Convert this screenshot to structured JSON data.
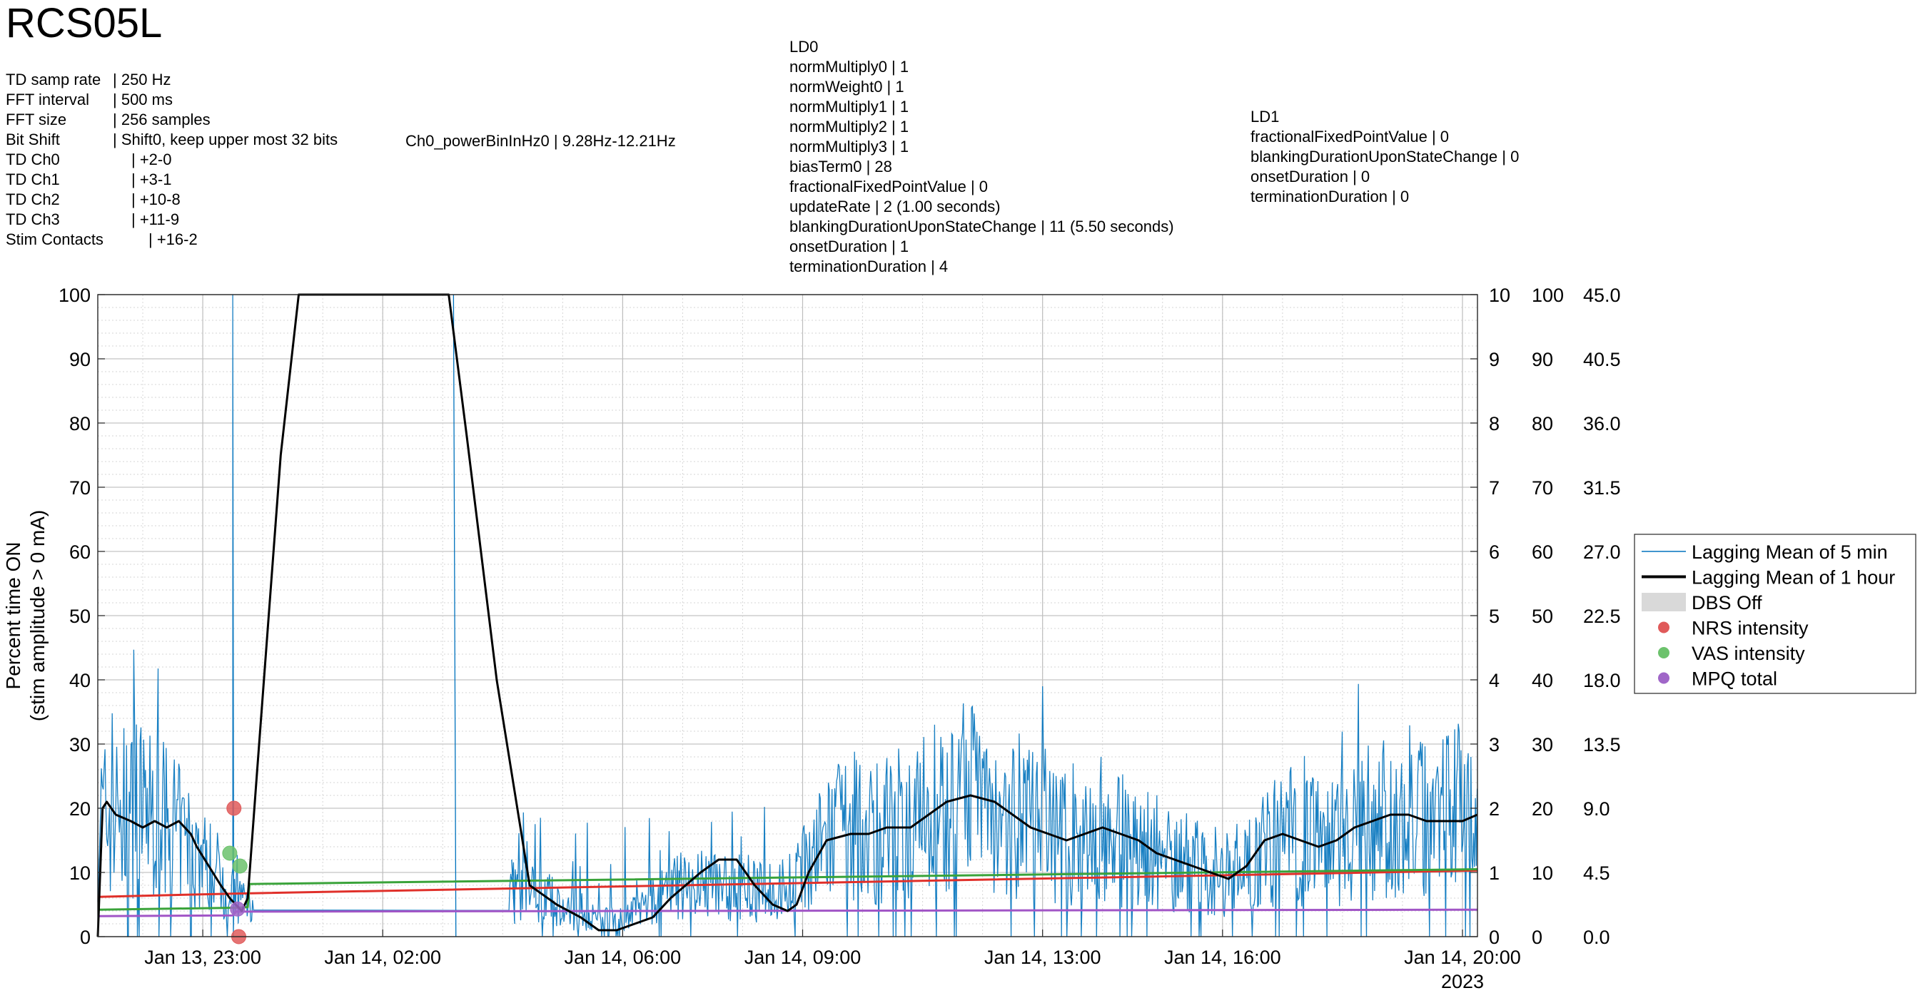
{
  "title": "RCS05L",
  "td_info": [
    {
      "key": "TD samp rate",
      "value": "| 250 Hz",
      "indent": 150
    },
    {
      "key": "FFT interval",
      "value": "| 500 ms",
      "indent": 150
    },
    {
      "key": "FFT size",
      "value": "| 256 samples",
      "indent": 150
    },
    {
      "key": "Bit Shift",
      "value": "| Shift0, keep upper most 32 bits",
      "indent": 150
    },
    {
      "key": "TD Ch0",
      "value": "| +2-0",
      "indent": 176
    },
    {
      "key": "TD Ch1",
      "value": "| +3-1",
      "indent": 176
    },
    {
      "key": "TD Ch2",
      "value": "| +10-8",
      "indent": 176
    },
    {
      "key": "TD Ch3",
      "value": "| +11-9",
      "indent": 176
    },
    {
      "key": "Stim Contacts",
      "value": "| +16-2",
      "indent": 200
    }
  ],
  "power_bin": "Ch0_powerBinInHz0 | 9.28Hz-12.21Hz",
  "ld0": [
    "LD0",
    "normMultiply0 | 1",
    "normWeight0 | 1",
    "normMultiply1 | 1",
    "normMultiply2 | 1",
    "normMultiply3 | 1",
    "biasTerm0 | 28",
    "fractionalFixedPointValue | 0",
    "updateRate | 2 (1.00 seconds)",
    "blankingDurationUponStateChange | 11 (5.50 seconds)",
    "onsetDuration | 1",
    "terminationDuration | 4"
  ],
  "ld1": [
    "LD1",
    "fractionalFixedPointValue | 0",
    "blankingDurationUponStateChange | 0",
    "onsetDuration | 0",
    "terminationDuration | 0"
  ],
  "chart_data": {
    "type": "line",
    "ylabel": [
      "Percent time ON",
      "(stim amplitude > 0 mA)"
    ],
    "ylim": [
      0,
      100
    ],
    "yticks": [
      0,
      10,
      20,
      30,
      40,
      50,
      60,
      70,
      80,
      90,
      100
    ],
    "xlim": [
      21.25,
      44.25
    ],
    "x_unit": "hours since Jan 13 00:00",
    "xticks": [
      {
        "x": 23,
        "label": "Jan 13, 23:00"
      },
      {
        "x": 26,
        "label": "Jan 14, 02:00"
      },
      {
        "x": 30,
        "label": "Jan 14, 06:00"
      },
      {
        "x": 33,
        "label": "Jan 14, 09:00"
      },
      {
        "x": 37,
        "label": "Jan 14, 13:00"
      },
      {
        "x": 40,
        "label": "Jan 14, 16:00"
      },
      {
        "x": 44,
        "label": "Jan 14, 20:00"
      }
    ],
    "year_label": "2023",
    "right_axes": [
      {
        "ticks": [
          "0",
          "1",
          "2",
          "3",
          "4",
          "5",
          "6",
          "7",
          "8",
          "9",
          "10"
        ]
      },
      {
        "ticks": [
          "0",
          "10",
          "20",
          "30",
          "40",
          "50",
          "60",
          "70",
          "80",
          "90",
          "100"
        ]
      },
      {
        "ticks": [
          "0.0",
          "4.5",
          "9.0",
          "13.5",
          "18.0",
          "22.5",
          "27.0",
          "31.5",
          "36.0",
          "40.5",
          "45.0"
        ]
      }
    ],
    "grid": true,
    "legend_position": "right",
    "legend": [
      {
        "label": "Lagging Mean of 5 min",
        "kind": "thin-line",
        "color": "#0072BD"
      },
      {
        "label": "Lagging Mean of 1 hour",
        "kind": "thick-line",
        "color": "#000000"
      },
      {
        "label": "DBS Off",
        "kind": "patch",
        "color": "#d9d9d9"
      },
      {
        "label": "NRS intensity",
        "kind": "dot",
        "color": "#e05a5a"
      },
      {
        "label": "VAS intensity",
        "kind": "dot",
        "color": "#6cc26c"
      },
      {
        "label": "MPQ total",
        "kind": "dot",
        "color": "#a066c8"
      }
    ],
    "series": [
      {
        "name": "Lagging Mean of 1 hour",
        "color": "#000000",
        "width": 3,
        "points": [
          [
            21.25,
            0
          ],
          [
            21.33,
            20
          ],
          [
            21.4,
            21
          ],
          [
            21.55,
            19
          ],
          [
            21.8,
            18
          ],
          [
            22.0,
            17
          ],
          [
            22.2,
            18
          ],
          [
            22.4,
            17
          ],
          [
            22.6,
            18
          ],
          [
            22.8,
            16
          ],
          [
            22.9,
            14
          ],
          [
            23.1,
            11
          ],
          [
            23.3,
            8
          ],
          [
            23.45,
            6
          ],
          [
            23.55,
            5
          ],
          [
            23.65,
            4
          ],
          [
            23.75,
            6
          ],
          [
            23.9,
            25
          ],
          [
            24.3,
            75
          ],
          [
            24.6,
            100
          ],
          [
            27.1,
            100
          ],
          [
            27.4,
            78
          ],
          [
            27.9,
            40
          ],
          [
            28.45,
            8
          ],
          [
            28.9,
            5
          ],
          [
            29.3,
            3
          ],
          [
            29.6,
            1
          ],
          [
            29.9,
            1
          ],
          [
            30.2,
            2
          ],
          [
            30.5,
            3
          ],
          [
            30.8,
            6
          ],
          [
            31.3,
            10
          ],
          [
            31.6,
            12
          ],
          [
            31.9,
            12
          ],
          [
            32.2,
            8
          ],
          [
            32.5,
            5
          ],
          [
            32.75,
            4
          ],
          [
            32.9,
            5
          ],
          [
            33.1,
            10
          ],
          [
            33.4,
            15
          ],
          [
            33.8,
            16
          ],
          [
            34.1,
            16
          ],
          [
            34.4,
            17
          ],
          [
            34.8,
            17
          ],
          [
            35.1,
            19
          ],
          [
            35.4,
            21
          ],
          [
            35.8,
            22
          ],
          [
            36.2,
            21
          ],
          [
            36.5,
            19
          ],
          [
            36.8,
            17
          ],
          [
            37.1,
            16
          ],
          [
            37.4,
            15
          ],
          [
            37.7,
            16
          ],
          [
            38.0,
            17
          ],
          [
            38.3,
            16
          ],
          [
            38.6,
            15
          ],
          [
            38.9,
            13
          ],
          [
            39.2,
            12
          ],
          [
            39.5,
            11
          ],
          [
            39.8,
            10
          ],
          [
            40.1,
            9
          ],
          [
            40.4,
            11
          ],
          [
            40.7,
            15
          ],
          [
            41.0,
            16
          ],
          [
            41.3,
            15
          ],
          [
            41.6,
            14
          ],
          [
            41.9,
            15
          ],
          [
            42.2,
            17
          ],
          [
            42.5,
            18
          ],
          [
            42.8,
            19
          ],
          [
            43.1,
            19
          ],
          [
            43.4,
            18
          ],
          [
            43.7,
            18
          ],
          [
            44.0,
            18
          ],
          [
            44.25,
            19
          ]
        ]
      },
      {
        "name": "NRS intensity",
        "color": "#e0302a",
        "width": 3,
        "points": [
          [
            21.25,
            6.2
          ],
          [
            23.5,
            6.7
          ],
          [
            44.25,
            10.3
          ]
        ]
      },
      {
        "name": "VAS intensity",
        "color": "#3aa33a",
        "width": 3,
        "points": [
          [
            21.25,
            4.2
          ],
          [
            23.55,
            4.5
          ],
          [
            23.75,
            4.6
          ],
          [
            23.78,
            8.2
          ],
          [
            44.25,
            10.5
          ]
        ]
      },
      {
        "name": "MPQ total",
        "color": "#a155c6",
        "width": 3,
        "points": [
          [
            21.25,
            3.2
          ],
          [
            23.5,
            3.3
          ],
          [
            23.55,
            3.9
          ],
          [
            44.25,
            4.2
          ]
        ]
      }
    ],
    "noisy_series": {
      "name": "Lagging Mean of 5 min",
      "color": "#0072BD",
      "spikes": [
        [
          23.5,
          100
        ],
        [
          27.2,
          100
        ],
        [
          26.95,
          40
        ],
        [
          28.5,
          15
        ]
      ],
      "envelope": [
        [
          21.25,
          18
        ],
        [
          22.0,
          20
        ],
        [
          22.5,
          17
        ],
        [
          23.0,
          12
        ],
        [
          23.45,
          8
        ],
        [
          23.6,
          6
        ],
        [
          28.1,
          7
        ],
        [
          28.6,
          7
        ],
        [
          29.2,
          3
        ],
        [
          30.0,
          3
        ],
        [
          31.0,
          8
        ],
        [
          32.0,
          8
        ],
        [
          32.5,
          6
        ],
        [
          33.0,
          10
        ],
        [
          33.5,
          16
        ],
        [
          34.5,
          17
        ],
        [
          35.0,
          19
        ],
        [
          35.5,
          21
        ],
        [
          36.0,
          22
        ],
        [
          36.5,
          19
        ],
        [
          37.5,
          16
        ],
        [
          38.5,
          15
        ],
        [
          39.5,
          11
        ],
        [
          40.0,
          10
        ],
        [
          40.5,
          12
        ],
        [
          41.0,
          16
        ],
        [
          42.0,
          15
        ],
        [
          42.5,
          18
        ],
        [
          43.5,
          19
        ],
        [
          44.25,
          19
        ]
      ]
    },
    "markers": [
      {
        "series": "NRS intensity",
        "x": 23.52,
        "y": 20,
        "color": "#e05a5a"
      },
      {
        "series": "NRS intensity",
        "x": 23.6,
        "y": 0,
        "color": "#e05a5a"
      },
      {
        "series": "VAS intensity",
        "x": 23.45,
        "y": 13,
        "color": "#6cc26c"
      },
      {
        "series": "VAS intensity",
        "x": 23.62,
        "y": 11,
        "color": "#6cc26c"
      },
      {
        "series": "MPQ total",
        "x": 23.58,
        "y": 4.3,
        "color": "#a066c8"
      }
    ]
  }
}
